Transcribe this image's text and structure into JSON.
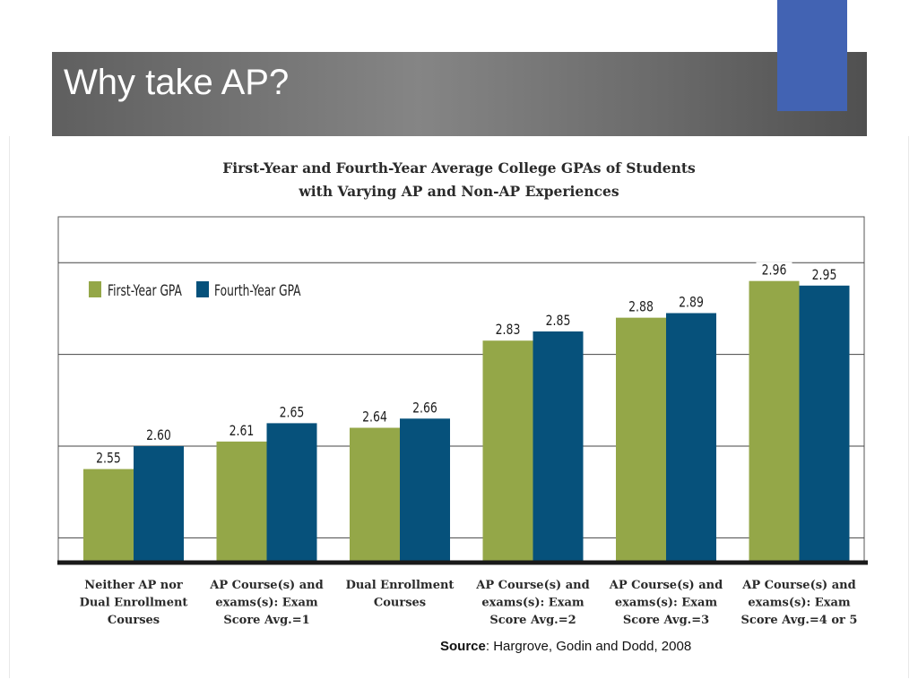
{
  "slide": {
    "title": "Why take AP?",
    "source_label": "Source",
    "source_text": ": Hargrove, Godin and Dodd, 2008"
  },
  "colors": {
    "first_year": "#94a748",
    "fourth_year": "#06517b",
    "accent": "#4263b3"
  },
  "chart_data": {
    "type": "bar",
    "title_line1": "First-Year and Fourth-Year Average College GPAs of Students",
    "title_line2": "with Varying AP and Non-AP Experiences",
    "categories": [
      [
        "Neither AP nor",
        "Dual Enrollment",
        "Courses"
      ],
      [
        "AP Course(s) and",
        "exams(s): Exam",
        "Score Avg.=1"
      ],
      [
        "Dual Enrollment",
        "Courses"
      ],
      [
        "AP Course(s) and",
        "exams(s): Exam",
        "Score Avg.=2"
      ],
      [
        "AP Course(s) and",
        "exams(s): Exam",
        "Score Avg.=3"
      ],
      [
        "AP Course(s) and",
        "exams(s): Exam",
        "Score Avg.=4 or 5"
      ]
    ],
    "series": [
      {
        "name": "First-Year GPA",
        "values": [
          2.55,
          2.61,
          2.64,
          2.83,
          2.88,
          2.96
        ],
        "labels": [
          "2.55",
          "2.61",
          "2.64",
          "2.83",
          "2.88",
          "2.96"
        ]
      },
      {
        "name": "Fourth-Year GPA",
        "values": [
          2.6,
          2.65,
          2.66,
          2.85,
          2.89,
          2.95
        ],
        "labels": [
          "2.60",
          "2.65",
          "2.66",
          "2.85",
          "2.89",
          "2.95"
        ]
      }
    ],
    "ylim": [
      2.35,
      3.1
    ],
    "gridlines": [
      2.4,
      2.6,
      2.8,
      3.0
    ],
    "legend_position": "top-left",
    "xlabel": "",
    "ylabel": ""
  }
}
